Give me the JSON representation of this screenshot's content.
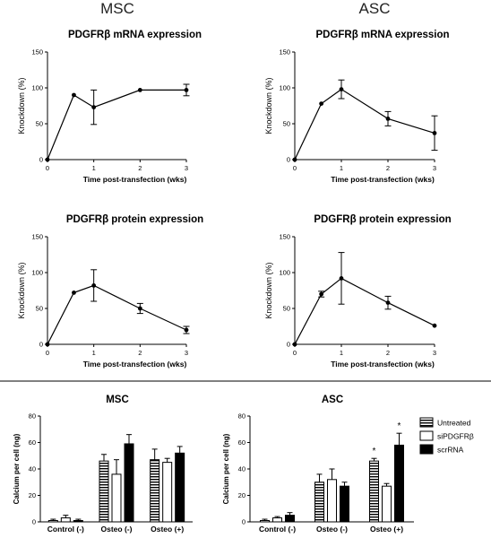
{
  "headers": {
    "left": "MSC",
    "right": "ASC"
  },
  "chart_data": [
    {
      "id": "msc-mrna",
      "type": "line",
      "title": "PDGFRβ mRNA expression",
      "xlabel": "Time post-transfection (wks)",
      "ylabel": "Knockdown (%)",
      "xlim": [
        0,
        3
      ],
      "ylim": [
        0,
        150
      ],
      "xticks": [
        "0",
        "1",
        "2",
        "3"
      ],
      "yticks": [
        "0",
        "50",
        "100",
        "150"
      ],
      "points": [
        {
          "x": 0,
          "y": 0,
          "err": 0
        },
        {
          "x": 0.57,
          "y": 90,
          "err": 0
        },
        {
          "x": 1,
          "y": 73,
          "err": 24
        },
        {
          "x": 2,
          "y": 97,
          "err": 0
        },
        {
          "x": 3,
          "y": 97,
          "err": 8
        }
      ]
    },
    {
      "id": "asc-mrna",
      "type": "line",
      "title": "PDGFRβ mRNA expression",
      "xlabel": "Time post-transfection (wks)",
      "ylabel": "Knockdown (%)",
      "xlim": [
        0,
        3
      ],
      "ylim": [
        0,
        150
      ],
      "xticks": [
        "0",
        "1",
        "2",
        "3"
      ],
      "yticks": [
        "0",
        "50",
        "100",
        "150"
      ],
      "points": [
        {
          "x": 0,
          "y": 0,
          "err": 0
        },
        {
          "x": 0.57,
          "y": 78,
          "err": 0
        },
        {
          "x": 1,
          "y": 98,
          "err": 13
        },
        {
          "x": 2,
          "y": 57,
          "err": 10
        },
        {
          "x": 3,
          "y": 37,
          "err": 24
        }
      ]
    },
    {
      "id": "msc-protein",
      "type": "line",
      "title": "PDGFRβ protein expression",
      "xlabel": "Time post-transfection (wks)",
      "ylabel": "Knockdown (%)",
      "xlim": [
        0,
        3
      ],
      "ylim": [
        0,
        150
      ],
      "xticks": [
        "0",
        "1",
        "2",
        "3"
      ],
      "yticks": [
        "0",
        "50",
        "100",
        "150"
      ],
      "points": [
        {
          "x": 0,
          "y": 0,
          "err": 0
        },
        {
          "x": 0.57,
          "y": 72,
          "err": 0
        },
        {
          "x": 1,
          "y": 82,
          "err": 22
        },
        {
          "x": 2,
          "y": 50,
          "err": 7
        },
        {
          "x": 3,
          "y": 20,
          "err": 5
        }
      ]
    },
    {
      "id": "asc-protein",
      "type": "line",
      "title": "PDGFRβ protein expression",
      "xlabel": "Time post-transfection (wks)",
      "ylabel": "Knockdown (%)",
      "xlim": [
        0,
        3
      ],
      "ylim": [
        0,
        150
      ],
      "xticks": [
        "0",
        "1",
        "2",
        "3"
      ],
      "yticks": [
        "0",
        "50",
        "100",
        "150"
      ],
      "points": [
        {
          "x": 0,
          "y": 0,
          "err": 0
        },
        {
          "x": 0.57,
          "y": 70,
          "err": 4
        },
        {
          "x": 1,
          "y": 92,
          "err": 36
        },
        {
          "x": 2,
          "y": 58,
          "err": 9
        },
        {
          "x": 3,
          "y": 26,
          "err": 0
        }
      ]
    },
    {
      "id": "msc-calcium",
      "type": "bar",
      "title": "MSC",
      "xlabel": "",
      "ylabel": "Calcium per cell (ng)",
      "ylim": [
        0,
        80
      ],
      "yticks": [
        "0",
        "20",
        "40",
        "60",
        "80"
      ],
      "categories": [
        "Control (-)",
        "Osteo (-)",
        "Osteo (+)"
      ],
      "series": [
        {
          "name": "Untreated",
          "values": [
            1,
            46,
            47
          ],
          "errors": [
            1,
            5,
            8
          ]
        },
        {
          "name": "siPDGFRβ",
          "values": [
            3,
            36,
            45
          ],
          "errors": [
            2,
            11,
            3
          ]
        },
        {
          "name": "scrRNA",
          "values": [
            1,
            59,
            52
          ],
          "errors": [
            1,
            7,
            5
          ]
        }
      ],
      "annotations": []
    },
    {
      "id": "asc-calcium",
      "type": "bar",
      "title": "ASC",
      "xlabel": "",
      "ylabel": "Calcium per cell (ng)",
      "ylim": [
        0,
        80
      ],
      "yticks": [
        "0",
        "20",
        "40",
        "60",
        "80"
      ],
      "categories": [
        "Control (-)",
        "Osteo (-)",
        "Osteo (+)"
      ],
      "series": [
        {
          "name": "Untreated",
          "values": [
            1,
            30,
            46
          ],
          "errors": [
            1,
            6,
            2
          ]
        },
        {
          "name": "siPDGFRβ",
          "values": [
            3,
            32,
            27
          ],
          "errors": [
            1,
            8,
            2
          ]
        },
        {
          "name": "scrRNA",
          "values": [
            5,
            27,
            58
          ],
          "errors": [
            2,
            3,
            9
          ]
        }
      ],
      "annotations": [
        {
          "category": 2,
          "series": 0,
          "text": "*"
        },
        {
          "category": 2,
          "series": 2,
          "text": "*"
        }
      ]
    }
  ],
  "legend": {
    "position": "right",
    "items": [
      {
        "label": "Untreated",
        "pattern": "hstripes"
      },
      {
        "label": "siPDGFRβ",
        "pattern": "white"
      },
      {
        "label": "scrRNA",
        "pattern": "black"
      }
    ]
  }
}
